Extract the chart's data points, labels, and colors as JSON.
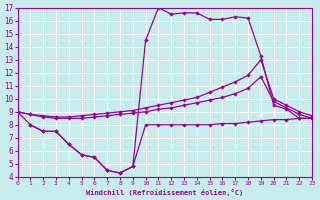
{
  "xlabel": "Windchill (Refroidissement éolien,°C)",
  "bg_color": "#c8ecec",
  "line_color": "#990099",
  "grid_color": "#ffffff",
  "xlim": [
    0,
    23
  ],
  "ylim": [
    4,
    17
  ],
  "xticks": [
    0,
    1,
    2,
    3,
    4,
    5,
    6,
    7,
    8,
    9,
    10,
    11,
    12,
    13,
    14,
    15,
    16,
    17,
    18,
    19,
    20,
    21,
    22,
    23
  ],
  "yticks": [
    4,
    5,
    6,
    7,
    8,
    9,
    10,
    11,
    12,
    13,
    14,
    15,
    16,
    17
  ],
  "lineA_x": [
    0,
    1,
    2,
    3,
    4,
    5,
    6,
    7,
    8,
    9,
    10,
    11,
    12,
    13,
    14,
    15,
    16,
    17,
    18,
    19,
    20,
    21,
    22,
    23
  ],
  "lineA_y": [
    9.0,
    8.0,
    7.5,
    7.5,
    6.5,
    5.7,
    5.5,
    4.5,
    4.3,
    4.8,
    14.5,
    17.0,
    16.5,
    16.6,
    16.6,
    16.1,
    16.1,
    16.3,
    16.2,
    13.3,
    9.5,
    9.2,
    8.5,
    8.5
  ],
  "lineB_x": [
    1,
    2,
    3,
    4,
    5,
    6,
    7,
    8,
    9,
    10,
    11,
    12,
    13,
    14,
    15,
    16,
    17,
    18,
    19,
    20,
    21,
    22,
    23
  ],
  "lineB_y": [
    8.0,
    7.5,
    7.5,
    6.5,
    5.7,
    5.5,
    4.5,
    4.3,
    4.8,
    8.0,
    8.0,
    8.0,
    8.0,
    8.0,
    8.0,
    8.1,
    8.1,
    8.2,
    8.3,
    8.4,
    8.4,
    8.5,
    8.5
  ],
  "lineC_x": [
    0,
    1,
    2,
    3,
    4,
    5,
    6,
    7,
    8,
    9,
    10,
    11,
    12,
    13,
    14,
    15,
    16,
    17,
    18,
    19,
    20,
    21,
    22,
    23
  ],
  "lineC_y": [
    9.0,
    8.8,
    8.7,
    8.6,
    8.6,
    8.7,
    8.8,
    8.9,
    9.0,
    9.1,
    9.3,
    9.5,
    9.7,
    9.9,
    10.1,
    10.5,
    10.9,
    11.3,
    11.8,
    13.0,
    10.0,
    9.5,
    9.0,
    8.7
  ],
  "lineD_x": [
    0,
    1,
    2,
    3,
    4,
    5,
    6,
    7,
    8,
    9,
    10,
    11,
    12,
    13,
    14,
    15,
    16,
    17,
    18,
    19,
    20,
    21,
    22,
    23
  ],
  "lineD_y": [
    9.0,
    8.8,
    8.6,
    8.5,
    8.5,
    8.5,
    8.6,
    8.7,
    8.8,
    8.9,
    9.0,
    9.2,
    9.3,
    9.5,
    9.7,
    9.9,
    10.1,
    10.4,
    10.8,
    11.7,
    9.8,
    9.3,
    8.8,
    8.5
  ]
}
